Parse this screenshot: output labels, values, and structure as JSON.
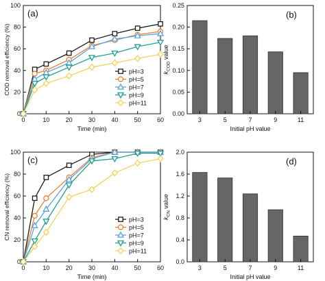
{
  "colors": {
    "pH3": "#1a1a1a",
    "pH5": "#ef7f2f",
    "pH7": "#56a3e6",
    "pH9": "#1f9e8c",
    "pH11": "#f2d45a",
    "bar_fill": "#666666",
    "axis": "#111111"
  },
  "chart_data": [
    {
      "id": "a",
      "panel_label": "(a)",
      "type": "line",
      "xlabel": "Time (min)",
      "ylabel": "COD removal efficiency (%)",
      "xlim": [
        0,
        60
      ],
      "ylim": [
        0,
        100
      ],
      "xticks": [
        0,
        10,
        20,
        30,
        40,
        50,
        60
      ],
      "yticks": [
        0,
        20,
        40,
        60,
        80,
        100
      ],
      "x": [
        0,
        5,
        10,
        20,
        30,
        40,
        50,
        60
      ],
      "legend_position": "bottom-right",
      "series": [
        {
          "name": "pH=3",
          "marker": "square",
          "color_key": "pH3",
          "values": [
            0,
            41,
            46,
            56,
            68,
            74,
            79,
            83
          ]
        },
        {
          "name": "pH=5",
          "marker": "circle",
          "color_key": "pH5",
          "values": [
            0,
            37,
            40,
            50,
            63,
            68,
            73,
            76
          ]
        },
        {
          "name": "pH=7",
          "marker": "triangle-up",
          "color_key": "pH7",
          "values": [
            0,
            32,
            38,
            47,
            62,
            69,
            72,
            74
          ]
        },
        {
          "name": "pH=9",
          "marker": "triangle-down",
          "color_key": "pH9",
          "values": [
            0,
            28,
            34,
            43,
            52,
            56,
            62,
            66
          ]
        },
        {
          "name": "pH=11",
          "marker": "diamond",
          "color_key": "pH11",
          "values": [
            0,
            22,
            28,
            35,
            43,
            47,
            51,
            55
          ]
        }
      ]
    },
    {
      "id": "b",
      "panel_label": "(b)",
      "type": "bar",
      "xlabel": "Initial pH value",
      "ylabel_main": "k",
      "ylabel_sub": "COD",
      "ylabel_tail": " value",
      "categories": [
        "3",
        "5",
        "7",
        "9",
        "11"
      ],
      "values": [
        0.215,
        0.174,
        0.18,
        0.143,
        0.095
      ],
      "ylim": [
        0,
        0.25
      ],
      "yticks": [
        "0.00",
        "0.05",
        "0.10",
        "0.15",
        "0.20",
        "0.25"
      ]
    },
    {
      "id": "c",
      "panel_label": "(c)",
      "type": "line",
      "xlabel": "Time (min)",
      "ylabel": "CN removal efficiency (%)",
      "xlim": [
        0,
        60
      ],
      "ylim": [
        0,
        100
      ],
      "xticks": [
        0,
        10,
        20,
        30,
        40,
        50,
        60
      ],
      "yticks": [
        0,
        20,
        40,
        60,
        80,
        100
      ],
      "x": [
        0,
        5,
        10,
        20,
        30,
        40,
        50,
        60
      ],
      "legend_position": "bottom-right",
      "series": [
        {
          "name": "pH=3",
          "marker": "square",
          "color_key": "pH3",
          "values": [
            0,
            58,
            77,
            88,
            98,
            100,
            100,
            100
          ]
        },
        {
          "name": "pH=5",
          "marker": "circle",
          "color_key": "pH5",
          "values": [
            0,
            42,
            58,
            77,
            95,
            100,
            100,
            100
          ]
        },
        {
          "name": "pH=7",
          "marker": "triangle-up",
          "color_key": "pH7",
          "values": [
            0,
            33,
            48,
            75,
            94,
            100,
            100,
            100
          ]
        },
        {
          "name": "pH=9",
          "marker": "triangle-down",
          "color_key": "pH9",
          "values": [
            0,
            19,
            37,
            70,
            92,
            94,
            99,
            99
          ]
        },
        {
          "name": "pH=11",
          "marker": "diamond",
          "color_key": "pH11",
          "values": [
            0,
            14,
            27,
            59,
            66,
            81,
            90,
            94
          ]
        }
      ]
    },
    {
      "id": "d",
      "panel_label": "(d)",
      "type": "bar",
      "xlabel": "Initial pH value",
      "ylabel_main": "k",
      "ylabel_sub": "CN",
      "ylabel_tail": " value",
      "categories": [
        "3",
        "5",
        "7",
        "9",
        "11"
      ],
      "values": [
        1.63,
        1.53,
        1.24,
        0.95,
        0.47
      ],
      "ylim": [
        0,
        2.0
      ],
      "yticks": [
        "0.0",
        "0.4",
        "0.8",
        "1.2",
        "1.6",
        "2.0"
      ]
    }
  ]
}
